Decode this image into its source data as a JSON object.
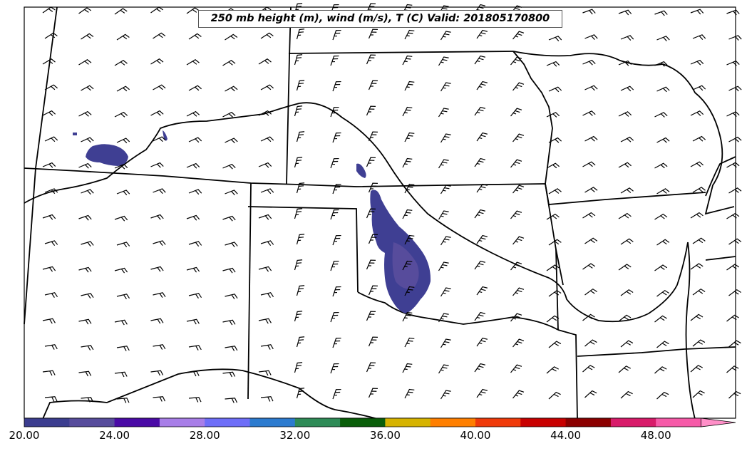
{
  "title": "250 mb height (m), wind (m/s), T (C) Valid: 201805170800",
  "colorbar": {
    "colors": [
      "#3b3d8f",
      "#574c9c",
      "#4a0aa6",
      "#a87ee8",
      "#6e6ef8",
      "#2c7bcf",
      "#2e8b57",
      "#0a5e0a",
      "#d6b300",
      "#ff7f00",
      "#ef3a0a",
      "#c80000",
      "#8b0000",
      "#d81b6a",
      "#f65aa8",
      "#ff8fc8"
    ],
    "tick_labels": [
      "20.00",
      "24.00",
      "28.00",
      "32.00",
      "36.00",
      "40.00",
      "44.00",
      "48.00"
    ]
  },
  "map": {
    "temperature_shading_color": "#3f3f93",
    "barb_color": "#000000",
    "border_color": "#000000"
  }
}
